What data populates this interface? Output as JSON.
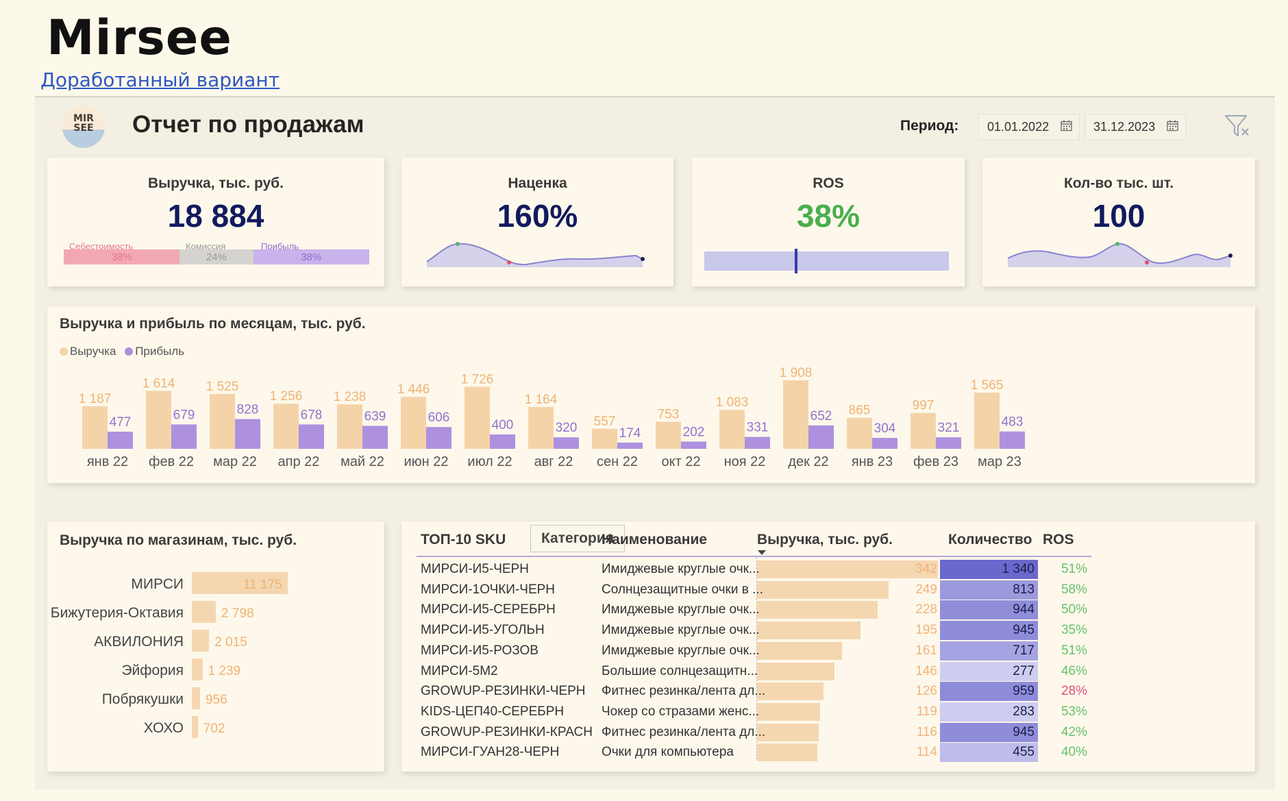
{
  "page": {
    "brand": "Mirsee",
    "link_text": "Доработанный вариант"
  },
  "header": {
    "logo_text": "MIR\nSEE",
    "title": "Отчет по продажам",
    "period_label": "Период:",
    "date_from": "01.01.2022",
    "date_to": "31.12.2023",
    "icons": [
      "calendar-icon",
      "calendar-icon",
      "clear-filter-icon"
    ]
  },
  "kpi": {
    "revenue": {
      "title": "Выручка, тыс. руб.",
      "value": "18 884",
      "split": [
        {
          "label": "Себестоимость",
          "pct": "38%",
          "fraction": 0.38,
          "color": "#f2a8b4",
          "label_color": "#e2788c"
        },
        {
          "label": "Комиссия",
          "pct": "24%",
          "fraction": 0.24,
          "color": "#d5d3d0",
          "label_color": "#999999"
        },
        {
          "label": "Прибыль",
          "pct": "38%",
          "fraction": 0.38,
          "color": "#c9b3ec",
          "label_color": "#8c6fcf"
        }
      ]
    },
    "markup": {
      "title": "Наценка",
      "value": "160%"
    },
    "ros": {
      "title": "ROS",
      "value": "38%"
    },
    "qty": {
      "title": "Кол-во тыс. шт.",
      "value": "100"
    }
  },
  "monthly": {
    "title": "Выручка и прибыль по месяцам, тыс. руб.",
    "legend": [
      {
        "label": "Выручка",
        "color": "#f5d3a9"
      },
      {
        "label": "Прибыль",
        "color": "#ad91df"
      }
    ]
  },
  "chart_data": [
    {
      "type": "bar",
      "title": "Выручка и прибыль по месяцам, тыс. руб.",
      "categories": [
        "янв 22",
        "фев 22",
        "мар 22",
        "апр 22",
        "май 22",
        "июн 22",
        "июл 22",
        "авг 22",
        "сен 22",
        "окт 22",
        "ноя 22",
        "дек 22",
        "янв 23",
        "фев 23",
        "мар 23"
      ],
      "series": [
        {
          "name": "Выручка",
          "color": "#f5d3a9",
          "label_color": "#f0b272",
          "values": [
            1187,
            1614,
            1525,
            1256,
            1238,
            1446,
            1726,
            1164,
            557,
            753,
            1083,
            1908,
            865,
            997,
            1565
          ],
          "labels": [
            "1 187",
            "1 614",
            "1 525",
            "1 256",
            "1 238",
            "1 446",
            "1 726",
            "1 164",
            "557",
            "753",
            "1 083",
            "1 908",
            "865",
            "997",
            "1 565"
          ]
        },
        {
          "name": "Прибыль",
          "color": "#ad91df",
          "label_color": "#8f73d1",
          "values": [
            477,
            679,
            828,
            678,
            639,
            606,
            400,
            320,
            174,
            202,
            331,
            652,
            304,
            321,
            483
          ],
          "labels": [
            "477",
            "679",
            "828",
            "678",
            "639",
            "606",
            "400",
            "320",
            "174",
            "202",
            "331",
            "652",
            "304",
            "321",
            "483"
          ]
        }
      ],
      "ylim": [
        0,
        1908
      ],
      "grid": false,
      "legend": "top-left"
    },
    {
      "type": "bar",
      "orientation": "horizontal",
      "title": "Выручка по магазинам, тыс. руб.",
      "categories": [
        "МИРСИ",
        "Бижутерия-Октавия",
        "АКВИЛОНИЯ",
        "Эйфория",
        "Побрякушки",
        "ХОХО"
      ],
      "values": [
        11175,
        2798,
        2015,
        1239,
        956,
        702
      ],
      "labels": [
        "11 175",
        "2 798",
        "2 015",
        "1 239",
        "956",
        "702"
      ]
    }
  ],
  "stores": {
    "title": "Выручка по магазинам, тыс. руб."
  },
  "top_sku": {
    "title": "ТОП-10 SKU",
    "category_button": "Категория",
    "columns": [
      "Наименование",
      "Выручка, тыс. руб.",
      "Количество",
      "ROS"
    ],
    "rows": [
      {
        "sku": "МИРСИ-И5-ЧЕРН",
        "name": "Имиджевые круглые очк...",
        "rev": 342,
        "rev_label": "342",
        "qty": 1340,
        "qty_label": "1 340",
        "ros": "51%"
      },
      {
        "sku": "МИРСИ-1ОЧКИ-ЧЕРН",
        "name": "Солнцезащитные очки в ...",
        "rev": 249,
        "rev_label": "249",
        "qty": 813,
        "qty_label": "813",
        "ros": "58%"
      },
      {
        "sku": "МИРСИ-И5-СЕРЕБРН",
        "name": "Имиджевые круглые очк...",
        "rev": 228,
        "rev_label": "228",
        "qty": 944,
        "qty_label": "944",
        "ros": "50%"
      },
      {
        "sku": "МИРСИ-И5-УГОЛЬН",
        "name": "Имиджевые круглые очк...",
        "rev": 195,
        "rev_label": "195",
        "qty": 945,
        "qty_label": "945",
        "ros": "35%"
      },
      {
        "sku": "МИРСИ-И5-РОЗОВ",
        "name": "Имиджевые круглые очк...",
        "rev": 161,
        "rev_label": "161",
        "qty": 717,
        "qty_label": "717",
        "ros": "51%"
      },
      {
        "sku": "МИРСИ-5М2",
        "name": "Большие солнцезащитн...",
        "rev": 146,
        "rev_label": "146",
        "qty": 277,
        "qty_label": "277",
        "ros": "46%"
      },
      {
        "sku": "GROWUP-РЕЗИНКИ-ЧЕРН",
        "name": "Фитнес резинка/лента дл...",
        "rev": 126,
        "rev_label": "126",
        "qty": 959,
        "qty_label": "959",
        "ros": "28%",
        "ros_low": true
      },
      {
        "sku": "KIDS-ЦЕП40-СЕРЕБРН",
        "name": "Чокер со стразами женс...",
        "rev": 119,
        "rev_label": "119",
        "qty": 283,
        "qty_label": "283",
        "ros": "53%"
      },
      {
        "sku": "GROWUP-РЕЗИНКИ-КРАСН",
        "name": "Фитнес резинка/лента дл...",
        "rev": 116,
        "rev_label": "116",
        "qty": 945,
        "qty_label": "945",
        "ros": "42%"
      },
      {
        "sku": "МИРСИ-ГУАН28-ЧЕРН",
        "name": "Очки для компьютера",
        "rev": 114,
        "rev_label": "114",
        "qty": 455,
        "qty_label": "455",
        "ros": "40%"
      }
    ]
  }
}
